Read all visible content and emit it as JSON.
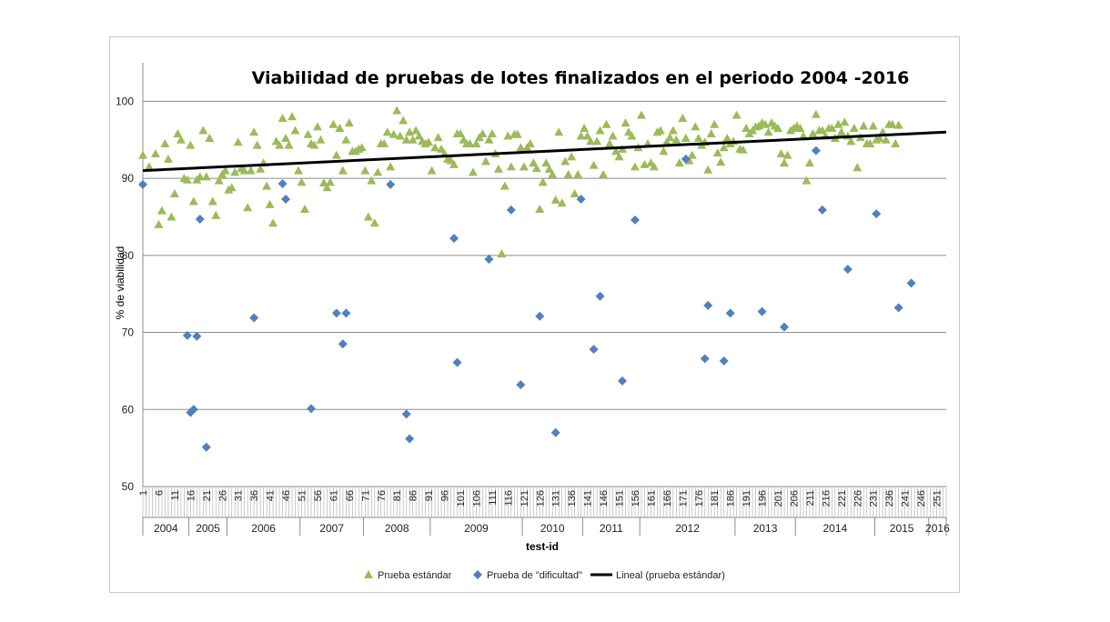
{
  "chart_data": {
    "type": "scatter",
    "title": "Viabilidad de pruebas de lotes finalizados en el periodo 2004 -2016",
    "xlabel": "test-id",
    "ylabel": "% de viabilidad",
    "xlim": [
      1,
      254
    ],
    "ylim": [
      50,
      105
    ],
    "yticks": [
      50,
      60,
      70,
      80,
      90,
      100
    ],
    "xtick_labels": [
      1,
      6,
      11,
      16,
      21,
      26,
      31,
      36,
      41,
      46,
      51,
      56,
      61,
      66,
      71,
      76,
      81,
      86,
      91,
      96,
      101,
      106,
      111,
      116,
      121,
      126,
      131,
      136,
      141,
      146,
      151,
      156,
      161,
      166,
      171,
      176,
      181,
      186,
      191,
      196,
      201,
      206,
      211,
      216,
      221,
      226,
      231,
      236,
      241,
      246,
      251
    ],
    "grid": true,
    "legend_position": "bottom",
    "year_groups": [
      {
        "label": "2004",
        "start": 1,
        "end": 15
      },
      {
        "label": "2005",
        "start": 16,
        "end": 27
      },
      {
        "label": "2006",
        "start": 28,
        "end": 50
      },
      {
        "label": "2007",
        "start": 51,
        "end": 70
      },
      {
        "label": "2008",
        "start": 71,
        "end": 91
      },
      {
        "label": "2009",
        "start": 92,
        "end": 120
      },
      {
        "label": "2010",
        "start": 121,
        "end": 139
      },
      {
        "label": "2011",
        "start": 140,
        "end": 157
      },
      {
        "label": "2012",
        "start": 158,
        "end": 187
      },
      {
        "label": "2013",
        "start": 188,
        "end": 206
      },
      {
        "label": "2014",
        "start": 207,
        "end": 231
      },
      {
        "label": "2015",
        "start": 232,
        "end": 248
      },
      {
        "label": "2016",
        "start": 249,
        "end": 254
      }
    ],
    "series": [
      {
        "name": "Prueba estándar",
        "marker": "triangle",
        "color": "#9BBB59",
        "points": [
          [
            1,
            93
          ],
          [
            3,
            91.5
          ],
          [
            5,
            93.2
          ],
          [
            6,
            84
          ],
          [
            7,
            85.8
          ],
          [
            8,
            94.5
          ],
          [
            9,
            92.5
          ],
          [
            10,
            85
          ],
          [
            11,
            88
          ],
          [
            12,
            95.8
          ],
          [
            13,
            95
          ],
          [
            14,
            90
          ],
          [
            15,
            89.8
          ],
          [
            16,
            94.3
          ],
          [
            17,
            87
          ],
          [
            18,
            89.8
          ],
          [
            19,
            90.2
          ],
          [
            20,
            96.2
          ],
          [
            21,
            90.2
          ],
          [
            22,
            95.2
          ],
          [
            23,
            87
          ],
          [
            24,
            85.2
          ],
          [
            25,
            89.7
          ],
          [
            26,
            90.5
          ],
          [
            27,
            91
          ],
          [
            28,
            88.5
          ],
          [
            29,
            88.8
          ],
          [
            30,
            90.8
          ],
          [
            31,
            94.7
          ],
          [
            32,
            91.3
          ],
          [
            33,
            91
          ],
          [
            34,
            86.2
          ],
          [
            35,
            91
          ],
          [
            36,
            96
          ],
          [
            37,
            94.3
          ],
          [
            38,
            91.2
          ],
          [
            39,
            92
          ],
          [
            40,
            89
          ],
          [
            41,
            86.6
          ],
          [
            42,
            84.2
          ],
          [
            43,
            94.8
          ],
          [
            44,
            94.3
          ],
          [
            45,
            97.8
          ],
          [
            46,
            95.2
          ],
          [
            47,
            94.3
          ],
          [
            48,
            98
          ],
          [
            49,
            96.2
          ],
          [
            50,
            91
          ],
          [
            51,
            89.5
          ],
          [
            52,
            86
          ],
          [
            53,
            95.7
          ],
          [
            54,
            94.5
          ],
          [
            55,
            94.3
          ],
          [
            56,
            96.7
          ],
          [
            57,
            95
          ],
          [
            58,
            89.4
          ],
          [
            59,
            88.8
          ],
          [
            60,
            89.5
          ],
          [
            61,
            97
          ],
          [
            62,
            93
          ],
          [
            63,
            96.5
          ],
          [
            64,
            91
          ],
          [
            65,
            95
          ],
          [
            66,
            97.2
          ],
          [
            67,
            93.5
          ],
          [
            68,
            93.5
          ],
          [
            69,
            93.8
          ],
          [
            70,
            94
          ],
          [
            71,
            91
          ],
          [
            72,
            85
          ],
          [
            73,
            89.7
          ],
          [
            74,
            84.2
          ],
          [
            75,
            90.8
          ],
          [
            76,
            94.5
          ],
          [
            77,
            94.5
          ],
          [
            78,
            96
          ],
          [
            79,
            91.5
          ],
          [
            80,
            95.7
          ],
          [
            81,
            98.8
          ],
          [
            82,
            95.5
          ],
          [
            83,
            97.5
          ],
          [
            84,
            95
          ],
          [
            85,
            96
          ],
          [
            86,
            95
          ],
          [
            87,
            96.2
          ],
          [
            88,
            95.5
          ],
          [
            89,
            94.8
          ],
          [
            90,
            94.5
          ],
          [
            91,
            94.7
          ],
          [
            92,
            91
          ],
          [
            93,
            94
          ],
          [
            94,
            95.3
          ],
          [
            95,
            93.8
          ],
          [
            96,
            93.2
          ],
          [
            97,
            92.5
          ],
          [
            98,
            92.3
          ],
          [
            99,
            91.8
          ],
          [
            100,
            95.8
          ],
          [
            101,
            95.8
          ],
          [
            102,
            95
          ],
          [
            103,
            94.5
          ],
          [
            104,
            94.5
          ],
          [
            105,
            90.8
          ],
          [
            106,
            94.5
          ],
          [
            107,
            95.3
          ],
          [
            108,
            95.8
          ],
          [
            109,
            92.2
          ],
          [
            110,
            95
          ],
          [
            111,
            95.8
          ],
          [
            112,
            93.2
          ],
          [
            113,
            91.2
          ],
          [
            114,
            80.2
          ],
          [
            115,
            89
          ],
          [
            116,
            95.5
          ],
          [
            117,
            91.5
          ],
          [
            118,
            95.7
          ],
          [
            119,
            95.7
          ],
          [
            120,
            94
          ],
          [
            121,
            91.5
          ],
          [
            122,
            94
          ],
          [
            123,
            94.5
          ],
          [
            124,
            92
          ],
          [
            125,
            91.3
          ],
          [
            126,
            86
          ],
          [
            127,
            89.5
          ],
          [
            128,
            92
          ],
          [
            129,
            91.2
          ],
          [
            130,
            90.5
          ],
          [
            131,
            87.2
          ],
          [
            132,
            96
          ],
          [
            133,
            86.8
          ],
          [
            134,
            92.2
          ],
          [
            135,
            90.5
          ],
          [
            136,
            92.8
          ],
          [
            137,
            88
          ],
          [
            138,
            90.5
          ],
          [
            139,
            95.5
          ],
          [
            140,
            96.5
          ],
          [
            141,
            95.5
          ],
          [
            142,
            94.8
          ],
          [
            143,
            91.7
          ],
          [
            144,
            94.8
          ],
          [
            145,
            96.2
          ],
          [
            146,
            90.5
          ],
          [
            147,
            97
          ],
          [
            148,
            94.5
          ],
          [
            149,
            95.5
          ],
          [
            150,
            93.5
          ],
          [
            151,
            92.8
          ],
          [
            152,
            93.8
          ],
          [
            153,
            97.2
          ],
          [
            154,
            96
          ],
          [
            155,
            95.5
          ],
          [
            156,
            91.5
          ],
          [
            157,
            94
          ],
          [
            158,
            98.2
          ],
          [
            159,
            91.8
          ],
          [
            160,
            94.5
          ],
          [
            161,
            92
          ],
          [
            162,
            91.5
          ],
          [
            163,
            96
          ],
          [
            164,
            96.2
          ],
          [
            165,
            93.5
          ],
          [
            166,
            94.7
          ],
          [
            167,
            95.3
          ],
          [
            168,
            96.2
          ],
          [
            169,
            95
          ],
          [
            170,
            92
          ],
          [
            171,
            97.8
          ],
          [
            172,
            95.2
          ],
          [
            173,
            92.3
          ],
          [
            174,
            93
          ],
          [
            175,
            96.7
          ],
          [
            176,
            95.2
          ],
          [
            177,
            94.3
          ],
          [
            178,
            94.7
          ],
          [
            179,
            91.1
          ],
          [
            180,
            95.8
          ],
          [
            181,
            97
          ],
          [
            182,
            93.3
          ],
          [
            183,
            92.1
          ],
          [
            184,
            94
          ],
          [
            185,
            95.2
          ],
          [
            186,
            94.5
          ],
          [
            187,
            94.8
          ],
          [
            188,
            98.2
          ],
          [
            189,
            93.8
          ],
          [
            190,
            93.7
          ],
          [
            191,
            96.5
          ],
          [
            192,
            95.8
          ],
          [
            193,
            96.2
          ],
          [
            194,
            96.7
          ],
          [
            195,
            96.8
          ],
          [
            196,
            97.2
          ],
          [
            197,
            97
          ],
          [
            198,
            96
          ],
          [
            199,
            97.2
          ],
          [
            200,
            96.8
          ],
          [
            201,
            96.5
          ],
          [
            202,
            93.2
          ],
          [
            203,
            92
          ],
          [
            204,
            93
          ],
          [
            205,
            96.2
          ],
          [
            206,
            96.5
          ],
          [
            207,
            96.8
          ],
          [
            208,
            96.5
          ],
          [
            209,
            95.5
          ],
          [
            210,
            89.7
          ],
          [
            211,
            92
          ],
          [
            212,
            95.8
          ],
          [
            213,
            98.3
          ],
          [
            214,
            96.2
          ],
          [
            215,
            96.2
          ],
          [
            216,
            95.5
          ],
          [
            217,
            96.5
          ],
          [
            218,
            96.5
          ],
          [
            219,
            95.2
          ],
          [
            220,
            97
          ],
          [
            221,
            96
          ],
          [
            222,
            97.3
          ],
          [
            223,
            95.5
          ],
          [
            224,
            94.8
          ],
          [
            225,
            96.5
          ],
          [
            226,
            91.4
          ],
          [
            227,
            95.3
          ],
          [
            228,
            96.8
          ],
          [
            229,
            94.5
          ],
          [
            230,
            94.5
          ],
          [
            231,
            96.8
          ],
          [
            232,
            95
          ],
          [
            233,
            95.2
          ],
          [
            234,
            96
          ],
          [
            235,
            95
          ],
          [
            236,
            97
          ],
          [
            237,
            97
          ],
          [
            238,
            94.5
          ],
          [
            239,
            96.9
          ]
        ]
      },
      {
        "name": "Prueba de \"dificultad\"",
        "marker": "diamond",
        "color": "#4F81BD",
        "points": [
          [
            1,
            89.2
          ],
          [
            15,
            69.6
          ],
          [
            16,
            59.6
          ],
          [
            17,
            60
          ],
          [
            18,
            69.5
          ],
          [
            19,
            84.7
          ],
          [
            21,
            55.1
          ],
          [
            36,
            71.9
          ],
          [
            45,
            89.3
          ],
          [
            46,
            87.3
          ],
          [
            54,
            60.1
          ],
          [
            62,
            72.5
          ],
          [
            64,
            68.5
          ],
          [
            65,
            72.5
          ],
          [
            79,
            89.2
          ],
          [
            84,
            59.4
          ],
          [
            85,
            56.2
          ],
          [
            99,
            82.2
          ],
          [
            100,
            66.1
          ],
          [
            110,
            79.5
          ],
          [
            117,
            85.9
          ],
          [
            120,
            63.2
          ],
          [
            126,
            72.1
          ],
          [
            131,
            57
          ],
          [
            139,
            87.3
          ],
          [
            143,
            67.8
          ],
          [
            145,
            74.7
          ],
          [
            152,
            63.7
          ],
          [
            156,
            84.6
          ],
          [
            172,
            92.5
          ],
          [
            178,
            66.6
          ],
          [
            179,
            73.5
          ],
          [
            184,
            66.3
          ],
          [
            186,
            72.5
          ],
          [
            196,
            72.7
          ],
          [
            203,
            70.7
          ],
          [
            213,
            93.6
          ],
          [
            215,
            85.9
          ],
          [
            223,
            78.2
          ],
          [
            232,
            85.4
          ],
          [
            239,
            73.2
          ],
          [
            243,
            76.4
          ]
        ]
      },
      {
        "name": "Lineal (prueba estándar)",
        "type": "line",
        "color": "#000000",
        "points": [
          [
            1,
            91
          ],
          [
            254,
            96
          ]
        ]
      }
    ]
  }
}
